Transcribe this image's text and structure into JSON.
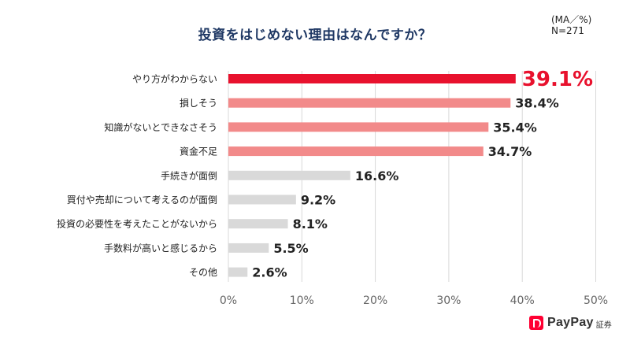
{
  "note": {
    "ma": "(MA／%)",
    "n": "N=271"
  },
  "logo": {
    "text": "PayPay",
    "sub": "証券"
  },
  "chart_data": {
    "type": "bar",
    "orientation": "horizontal",
    "title": "投資をはじめない理由はなんですか？",
    "categories": [
      "やり方がわからない",
      "損しそう",
      "知識がないとできなさそう",
      "資金不足",
      "手続きが面倒",
      "買付や売却について考えるのが面倒",
      "投資の必要性を考えたことがないから",
      "手数料が高いと感じるから",
      "その他"
    ],
    "values": [
      39.1,
      38.4,
      35.4,
      34.7,
      16.6,
      9.2,
      8.1,
      5.5,
      2.6
    ],
    "value_labels": [
      "39.1%",
      "38.4%",
      "35.4%",
      "34.7%",
      "16.6%",
      "9.2%",
      "8.1%",
      "5.5%",
      "2.6%"
    ],
    "xlim": [
      0,
      50
    ],
    "xticks": [
      "0%",
      "10%",
      "20%",
      "30%",
      "40%",
      "50%"
    ],
    "xlabel": "",
    "ylabel": "",
    "grid": true,
    "colors": {
      "top": "#e8112d",
      "high": "#f28a8a",
      "other": "#d9d9d9",
      "grid": "#d9d9d9",
      "top_label": "#e8112d"
    }
  }
}
